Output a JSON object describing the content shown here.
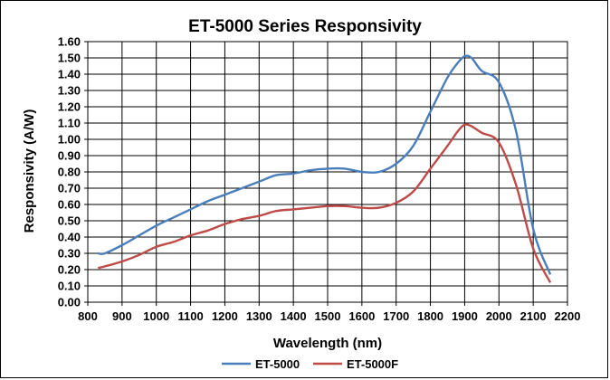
{
  "chart_data": {
    "type": "line",
    "title": "ET-5000 Series Responsivity",
    "xlabel": "Wavelength (nm)",
    "ylabel": "Responsivity (A/W)",
    "xlim": [
      800,
      2200
    ],
    "ylim": [
      0,
      1.6
    ],
    "x_ticks": [
      "800",
      "900",
      "1000",
      "1100",
      "1200",
      "1300",
      "1400",
      "1500",
      "1600",
      "1700",
      "1800",
      "1900",
      "2000",
      "2100",
      "2200"
    ],
    "y_ticks": [
      "0.00",
      "0.10",
      "0.20",
      "0.30",
      "0.40",
      "0.50",
      "0.60",
      "0.70",
      "0.80",
      "0.90",
      "1.00",
      "1.10",
      "1.20",
      "1.30",
      "1.40",
      "1.50",
      "1.60"
    ],
    "grid": true,
    "legend_position": "bottom",
    "series": [
      {
        "name": "ET-5000",
        "color": "#4a7ebb",
        "x": [
          830,
          850,
          900,
          950,
          1000,
          1050,
          1100,
          1150,
          1200,
          1250,
          1300,
          1350,
          1400,
          1450,
          1500,
          1550,
          1600,
          1650,
          1700,
          1750,
          1800,
          1850,
          1880,
          1900,
          1920,
          1950,
          2000,
          2050,
          2100,
          2150
        ],
        "y": [
          0.3,
          0.3,
          0.35,
          0.41,
          0.47,
          0.52,
          0.57,
          0.62,
          0.66,
          0.7,
          0.74,
          0.78,
          0.79,
          0.81,
          0.82,
          0.82,
          0.8,
          0.8,
          0.85,
          0.96,
          1.17,
          1.38,
          1.47,
          1.51,
          1.5,
          1.42,
          1.35,
          1.05,
          0.45,
          0.17
        ]
      },
      {
        "name": "ET-5000F",
        "color": "#be4b48",
        "x": [
          830,
          850,
          900,
          950,
          1000,
          1050,
          1100,
          1150,
          1200,
          1250,
          1300,
          1350,
          1400,
          1450,
          1500,
          1550,
          1600,
          1650,
          1700,
          1750,
          1800,
          1850,
          1880,
          1900,
          1920,
          1950,
          2000,
          2050,
          2100,
          2150
        ],
        "y": [
          0.21,
          0.22,
          0.25,
          0.29,
          0.34,
          0.37,
          0.41,
          0.44,
          0.48,
          0.51,
          0.53,
          0.56,
          0.57,
          0.58,
          0.59,
          0.59,
          0.58,
          0.58,
          0.61,
          0.68,
          0.82,
          0.96,
          1.05,
          1.09,
          1.08,
          1.04,
          0.98,
          0.72,
          0.33,
          0.12
        ]
      }
    ]
  }
}
